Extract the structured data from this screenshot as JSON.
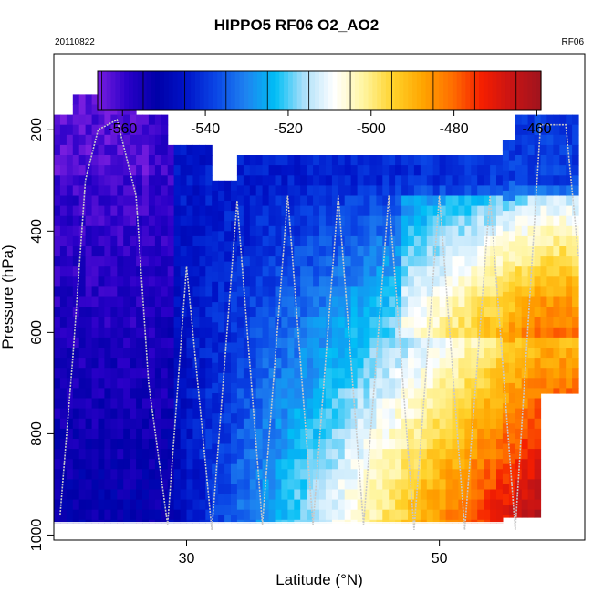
{
  "chart_data": {
    "type": "heatmap",
    "title": "HIPPO5 RF06 O2_AO2",
    "subtitle_left": "20110822",
    "subtitle_right": "RF06",
    "xlabel": "Latitude (°N)",
    "ylabel": "Pressure (hPa)",
    "xlim": [
      19.5,
      61.5
    ],
    "ylim": [
      1010,
      50
    ],
    "x_ticks": [
      30,
      50
    ],
    "y_ticks": [
      200,
      400,
      600,
      800,
      1000
    ],
    "colorbar": {
      "min": -566,
      "max": -459,
      "ticks": [
        -560,
        -540,
        -520,
        -500,
        -480,
        -460
      ],
      "tick_labels": [
        "-560",
        "-540",
        "-520",
        "-500",
        "-480",
        "-460"
      ],
      "colors": [
        "#7a1ee0",
        "#2a00c8",
        "#0000a8",
        "#0014c8",
        "#0a46e6",
        "#1e82f0",
        "#00bef5",
        "#aee0fa",
        "#ffffff",
        "#fff5a0",
        "#ffd22a",
        "#ffa500",
        "#ff6e00",
        "#f51e00",
        "#c81414",
        "#a0141e"
      ]
    },
    "field": {
      "lat_range": [
        20,
        61
      ],
      "pressure_range": [
        180,
        970
      ],
      "description_values": "O2_AO2 curtain: about -560 aloft (north of 30°N: -545 to -540), increasing toward -465 near the surface at 50-60°N"
    },
    "flight_profile": {
      "lat": [
        20,
        21,
        22,
        23,
        24.5,
        26,
        27,
        28.5,
        30,
        32,
        34,
        36,
        38,
        40,
        42,
        44,
        46,
        48,
        50,
        52,
        54,
        56,
        58,
        60,
        61
      ],
      "pressure": [
        960,
        650,
        300,
        200,
        180,
        330,
        700,
        980,
        470,
        990,
        340,
        980,
        330,
        980,
        330,
        980,
        330,
        990,
        330,
        990,
        330,
        990,
        190,
        190,
        450
      ]
    }
  }
}
